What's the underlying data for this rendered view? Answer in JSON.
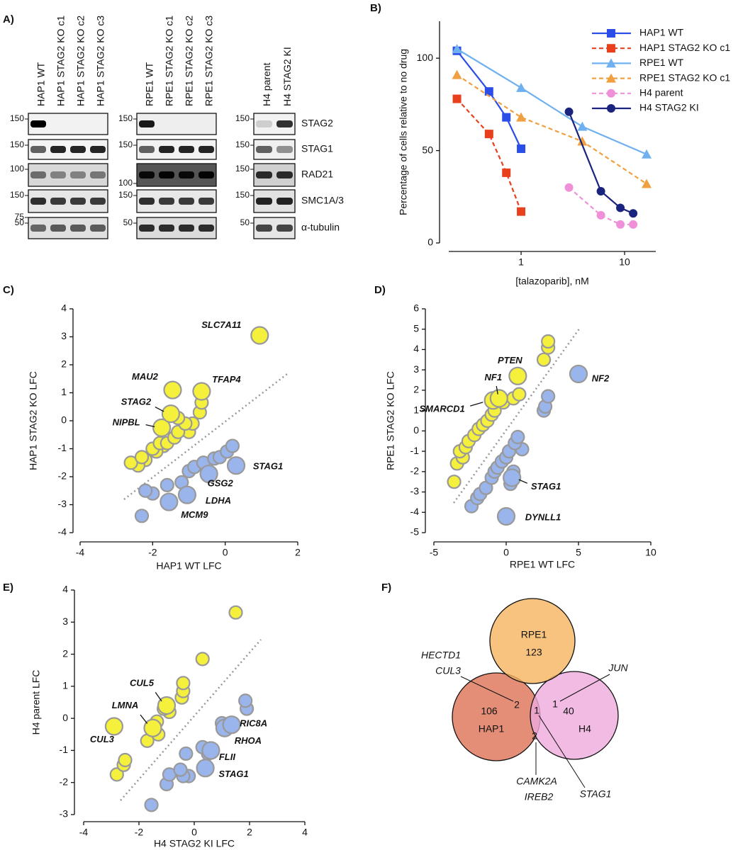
{
  "panel_labels": [
    "A)",
    "B)",
    "C)",
    "D)",
    "E)",
    "F)"
  ],
  "blot": {
    "groups": [
      {
        "lanes": [
          "HAP1 WT",
          "HAP1 STAG2 KO c1",
          "HAP1 STAG2 KO c2",
          "HAP1 STAG2 KO c3"
        ],
        "markers": [
          [
            "150"
          ],
          [
            "150"
          ],
          [
            "100"
          ],
          [
            "150",
            "75"
          ],
          [
            "50"
          ]
        ]
      },
      {
        "lanes": [
          "RPE1 WT",
          "RPE1 STAG2 KO c1",
          "RPE1 STAG2 KO c2",
          "RPE1 STAG2 KO c3"
        ],
        "markers": [
          [
            "150"
          ],
          [
            "150"
          ],
          [
            "100"
          ],
          [
            "150"
          ],
          [
            "50"
          ]
        ]
      },
      {
        "lanes": [
          "H4 parent",
          "H4 STAG2 KI"
        ],
        "markers": [
          [
            "150"
          ],
          [
            "150"
          ],
          [
            "150"
          ],
          [
            "150"
          ],
          [
            "50"
          ]
        ]
      }
    ],
    "proteins": [
      "STAG2",
      "STAG1",
      "RAD21",
      "SMC1A/3",
      "α-tubulin"
    ]
  },
  "chart_data": [
    {
      "type": "line",
      "xlabel": "[talazoparib], nM",
      "ylabel": "Percentage of cells relative to no drug",
      "xlog": true,
      "xlim": [
        0.2,
        20
      ],
      "xticks": [
        1,
        10
      ],
      "ylim": [
        0,
        120
      ],
      "yticks": [
        0,
        50,
        100
      ],
      "legend": "upper right",
      "series": [
        {
          "name": "HAP1 WT",
          "color": "#2b4ee8",
          "marker": "square",
          "dashed": false,
          "x": [
            0.24,
            0.49,
            0.72,
            1
          ],
          "values": [
            104,
            82,
            68,
            51
          ]
        },
        {
          "name": "HAP1 STAG2 KO c1",
          "color": "#e8401c",
          "marker": "square",
          "dashed": true,
          "x": [
            0.24,
            0.49,
            0.72,
            1
          ],
          "values": [
            78,
            59,
            38,
            17
          ]
        },
        {
          "name": "RPE1 WT",
          "color": "#6fb0f0",
          "marker": "triangle",
          "dashed": false,
          "x": [
            0.24,
            1,
            3.9,
            16.3
          ],
          "values": [
            105,
            84,
            63,
            48
          ]
        },
        {
          "name": "RPE1 STAG2 KO c1",
          "color": "#f0a040",
          "marker": "triangle",
          "dashed": true,
          "x": [
            0.24,
            1,
            3.9,
            16.3
          ],
          "values": [
            91,
            68,
            55,
            32
          ]
        },
        {
          "name": "H4 parent",
          "color": "#f090d8",
          "marker": "circle",
          "dashed": true,
          "x": [
            2.9,
            5.9,
            9.1,
            12.1
          ],
          "values": [
            30,
            15,
            10,
            10
          ]
        },
        {
          "name": "H4 STAG2 KI",
          "color": "#1a237e",
          "marker": "circle",
          "dashed": false,
          "x": [
            2.9,
            5.9,
            9.1,
            12.1
          ],
          "values": [
            71,
            28,
            19,
            16
          ]
        }
      ]
    },
    {
      "type": "scatter",
      "xlabel": "HAP1 WT LFC",
      "ylabel": "HAP1 STAG2 KO LFC",
      "xlim": [
        -4,
        2
      ],
      "xticks": [
        -4,
        -2,
        0,
        2
      ],
      "ylim": [
        -4,
        4
      ],
      "yticks": [
        -4,
        -3,
        -2,
        -1,
        0,
        1,
        2,
        3,
        4
      ],
      "series": [
        {
          "color": "#f5f03c",
          "x": [
            0.95,
            -1.45,
            -0.65,
            -1.5,
            -1.75,
            -0.65,
            -0.7,
            -1.3,
            -1.1,
            -0.9,
            -1.3,
            -1.0,
            -1.4,
            -1.6,
            -1.8,
            -2.0,
            -1.9,
            -2.3,
            -2.6,
            -2.4,
            -2.2,
            -1.7
          ],
          "values": [
            3.05,
            1.1,
            1.05,
            0.25,
            -0.25,
            0.65,
            0.3,
            0.1,
            -0.1,
            -0.1,
            -0.4,
            -0.4,
            -0.6,
            -0.8,
            -0.8,
            -1.0,
            -1.1,
            -1.3,
            -1.5,
            -1.6,
            -1.4,
            -0.9
          ],
          "labels": [
            "SLC7A11",
            "MAU2",
            "TFAP4",
            "STAG2",
            "NIPBL",
            null,
            null,
            null,
            null,
            null,
            null,
            null,
            null,
            null,
            null,
            null,
            null,
            null,
            null,
            null,
            null,
            null
          ]
        },
        {
          "color": "#9ab4ec",
          "x": [
            0.3,
            -0.45,
            -1.05,
            -1.55,
            0.2,
            0.05,
            -0.15,
            -0.3,
            -0.6,
            -0.85,
            -1.0,
            -1.2,
            -1.6,
            -2.2,
            -2.0,
            -2.3
          ],
          "values": [
            -1.6,
            -1.9,
            -2.65,
            -2.9,
            -0.9,
            -1.1,
            -1.3,
            -1.35,
            -1.5,
            -1.65,
            -1.8,
            -2.2,
            -2.3,
            -2.5,
            -2.6,
            -3.4
          ],
          "labels": [
            "STAG1",
            "GSG2",
            "LDHA",
            "MCM9",
            null,
            null,
            null,
            null,
            null,
            null,
            null,
            null,
            null,
            null,
            null,
            null
          ]
        }
      ]
    },
    {
      "type": "scatter",
      "xlabel": "RPE1 WT LFC",
      "ylabel": "RPE1 STAG2 KO LFC",
      "xlim": [
        -5,
        10
      ],
      "xticks": [
        -5,
        0,
        5,
        10
      ],
      "ylim": [
        -5,
        6
      ],
      "yticks": [
        -5,
        -4,
        -3,
        -2,
        -1,
        0,
        1,
        2,
        3,
        4,
        5,
        6
      ],
      "series": [
        {
          "color": "#f5f03c",
          "x": [
            0.8,
            -0.5,
            -0.9,
            2.9,
            2.9,
            2.6,
            0.9,
            0.5,
            -0.2,
            -0.8,
            -1.0,
            -1.3,
            -1.6,
            -1.9,
            -2.2,
            -2.6,
            -2.8,
            -3.2,
            -3.0,
            -3.4,
            -3.6
          ],
          "values": [
            2.7,
            1.6,
            1.5,
            4.4,
            4.1,
            3.5,
            1.8,
            1.6,
            1.4,
            1.0,
            0.8,
            0.5,
            0.3,
            0.1,
            -0.2,
            -0.5,
            -0.8,
            -1.0,
            -1.3,
            -1.6,
            -2.5
          ],
          "labels": [
            "PTEN",
            "NF1",
            "SMARCD1",
            null,
            null,
            null,
            null,
            null,
            null,
            null,
            null,
            null,
            null,
            null,
            null,
            null,
            null,
            null,
            null,
            null,
            null
          ]
        },
        {
          "color": "#9ab4ec",
          "x": [
            5,
            0.4,
            0,
            2.9,
            2.7,
            2.6,
            0.8,
            0.6,
            1.1,
            0.2,
            0.0,
            -0.3,
            -0.6,
            -0.8,
            -1.0,
            0.5,
            0.3,
            -1.4,
            -1.8,
            -2.0,
            -2.4
          ],
          "values": [
            2.8,
            -2.3,
            -4.2,
            1.7,
            1.2,
            1.0,
            -0.3,
            -0.6,
            -0.9,
            -1.0,
            -1.3,
            -1.5,
            -1.8,
            -2.0,
            -2.3,
            -2.0,
            -2.6,
            -2.8,
            -3.1,
            -3.3,
            -3.7
          ],
          "labels": [
            "NF2",
            "STAG1",
            "DYNLL1",
            null,
            null,
            null,
            null,
            null,
            null,
            null,
            null,
            null,
            null,
            null,
            null,
            null,
            null,
            null,
            null,
            null,
            null
          ]
        }
      ]
    },
    {
      "type": "scatter",
      "xlabel": "H4 STAG2 KI LFC",
      "ylabel": "H4 parent LFC",
      "xlim": [
        -4,
        4
      ],
      "xticks": [
        -4,
        -2,
        0,
        2,
        4
      ],
      "ylim": [
        -3,
        4
      ],
      "yticks": [
        -3,
        -2,
        -1,
        0,
        1,
        2,
        3,
        4
      ],
      "series": [
        {
          "color": "#f5f03c",
          "x": [
            -1.0,
            -1.5,
            -2.9,
            1.5,
            0.3,
            -0.4,
            -0.4,
            -0.45,
            -1.1,
            -0.9,
            -1.35,
            -1.3,
            -1.7,
            -2.5,
            -2.55,
            -2.8
          ],
          "values": [
            0.4,
            -0.3,
            -0.25,
            3.3,
            1.85,
            1.1,
            0.85,
            0.65,
            0.3,
            0.2,
            -0.1,
            -0.5,
            -0.7,
            -1.3,
            -1.45,
            -1.75
          ],
          "labels": [
            "CUL5",
            "LMNA",
            "CUL3",
            null,
            null,
            null,
            null,
            null,
            null,
            null,
            null,
            null,
            null,
            null,
            null,
            null
          ]
        },
        {
          "color": "#9ab4ec",
          "x": [
            1.35,
            1.1,
            0.6,
            0.4,
            1.85,
            1.9,
            1.0,
            0.3,
            0.5,
            -0.3,
            -0.5,
            -0.4,
            -0.9,
            -0.2,
            -1.0,
            -1.55
          ],
          "values": [
            -0.2,
            -0.3,
            -1.0,
            -1.55,
            0.55,
            0.3,
            -0.15,
            -0.9,
            -1.1,
            -1.1,
            -1.6,
            -1.8,
            -1.75,
            -1.8,
            -2.05,
            -2.7
          ],
          "labels": [
            "RIC8A",
            "RHOA",
            "FLII",
            "STAG1",
            null,
            null,
            null,
            null,
            null,
            null,
            null,
            null,
            null,
            null,
            null,
            null
          ]
        }
      ]
    }
  ],
  "venn": {
    "sets": [
      {
        "label": "RPE1",
        "count": "123"
      },
      {
        "label": "HAP1",
        "count": "106"
      },
      {
        "label": "H4",
        "count": "40"
      }
    ],
    "overlaps": [
      {
        "count": "2",
        "genes": [
          "HECTD1",
          "CUL3"
        ]
      },
      {
        "count": "1",
        "genes": [
          "JUN"
        ]
      },
      {
        "count": "1",
        "genes": [
          "STAG1"
        ]
      },
      {
        "count": "2",
        "genes": [
          "CAMK2A",
          "IREB2"
        ]
      }
    ]
  }
}
